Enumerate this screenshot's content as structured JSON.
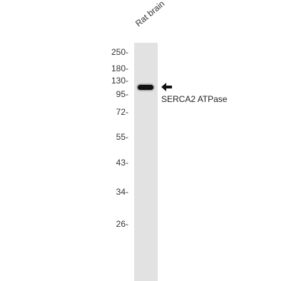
{
  "blot": {
    "lane_label": "Rat brain",
    "target_label": "SERCA2 ATPase",
    "markers": [
      "250-",
      "180-",
      "130-",
      "95-",
      "72-",
      "55-",
      "43-",
      "34-",
      "26-"
    ],
    "arrow_icon": "left-arrow-icon"
  }
}
